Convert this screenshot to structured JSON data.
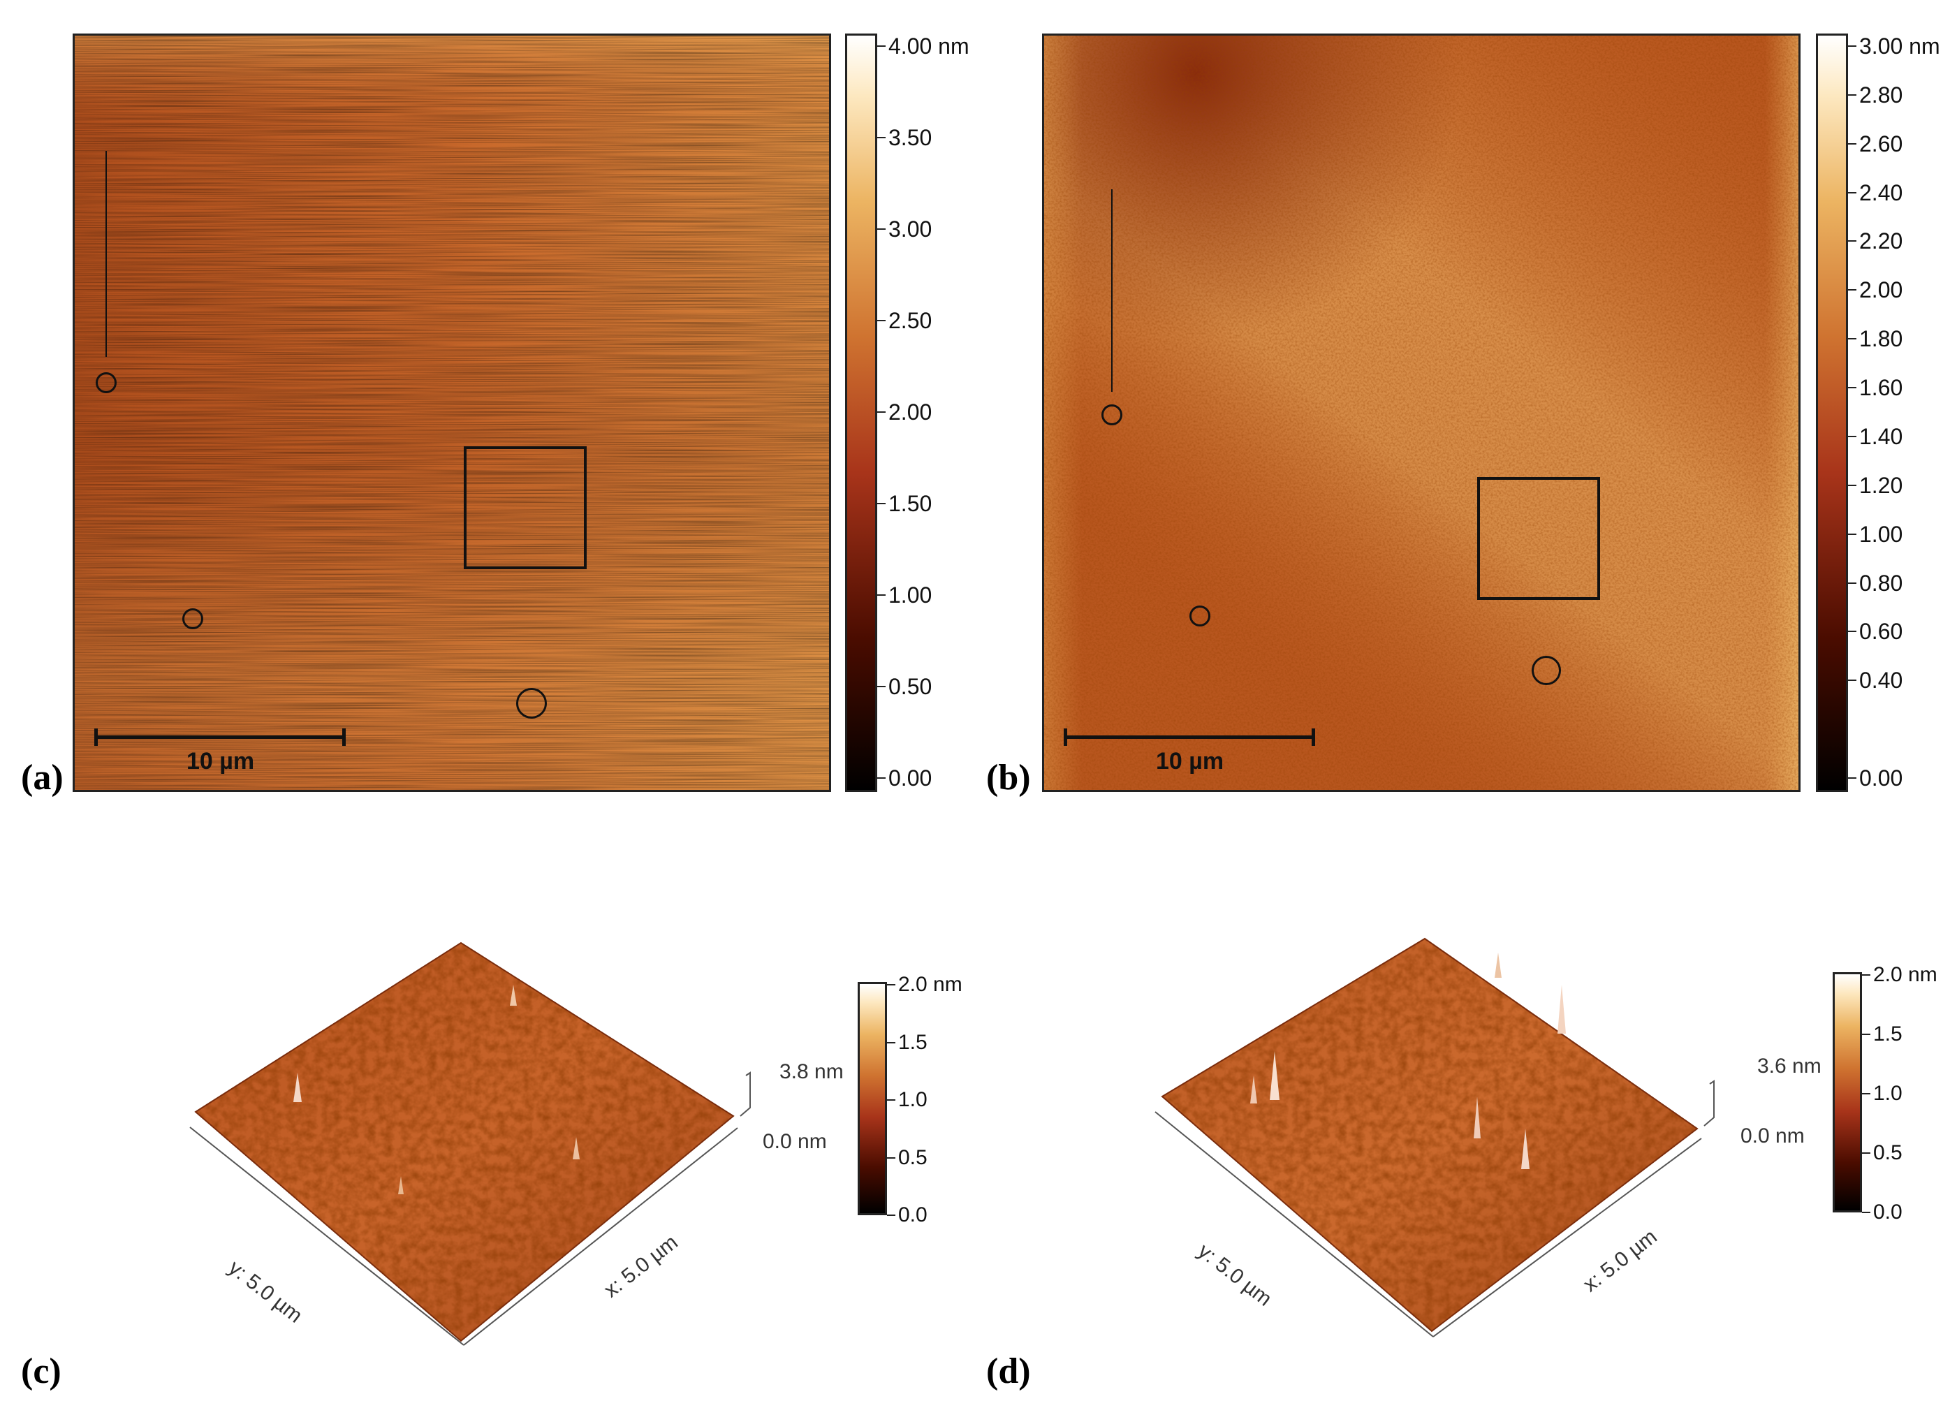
{
  "panels": {
    "a": {
      "label": "(a)",
      "scale": "10 µm",
      "colorbar": [
        "4.00 nm",
        "3.50",
        "3.00",
        "2.50",
        "2.00",
        "1.50",
        "1.00",
        "0.50",
        "0.00"
      ]
    },
    "b": {
      "label": "(b)",
      "scale": "10 µm",
      "colorbar": [
        "3.00 nm",
        "2.80",
        "2.60",
        "2.40",
        "2.20",
        "2.00",
        "1.80",
        "1.60",
        "1.40",
        "1.20",
        "1.00",
        "0.80",
        "0.60",
        "0.40",
        "0.00"
      ]
    },
    "c": {
      "label": "(c)",
      "z_max": "3.8 nm",
      "z_min": "0.0 nm",
      "y_axis": "y: 5.0 µm",
      "x_axis": "x: 5.0 µm",
      "colorbar": [
        "2.0 nm",
        "1.5",
        "1.0",
        "0.5",
        "0.0"
      ]
    },
    "d": {
      "label": "(d)",
      "z_max": "3.6 nm",
      "z_min": "0.0 nm",
      "y_axis": "y: 5.0 µm",
      "x_axis": "x: 5.0 µm",
      "colorbar": [
        "2.0 nm",
        "1.5",
        "1.0",
        "0.5",
        "0.0"
      ]
    }
  },
  "colors": {
    "colormap": [
      "#000000",
      "#4a0c00",
      "#9e3010",
      "#c8682a",
      "#e8a858",
      "#fff6e0",
      "#ffffff"
    ]
  }
}
